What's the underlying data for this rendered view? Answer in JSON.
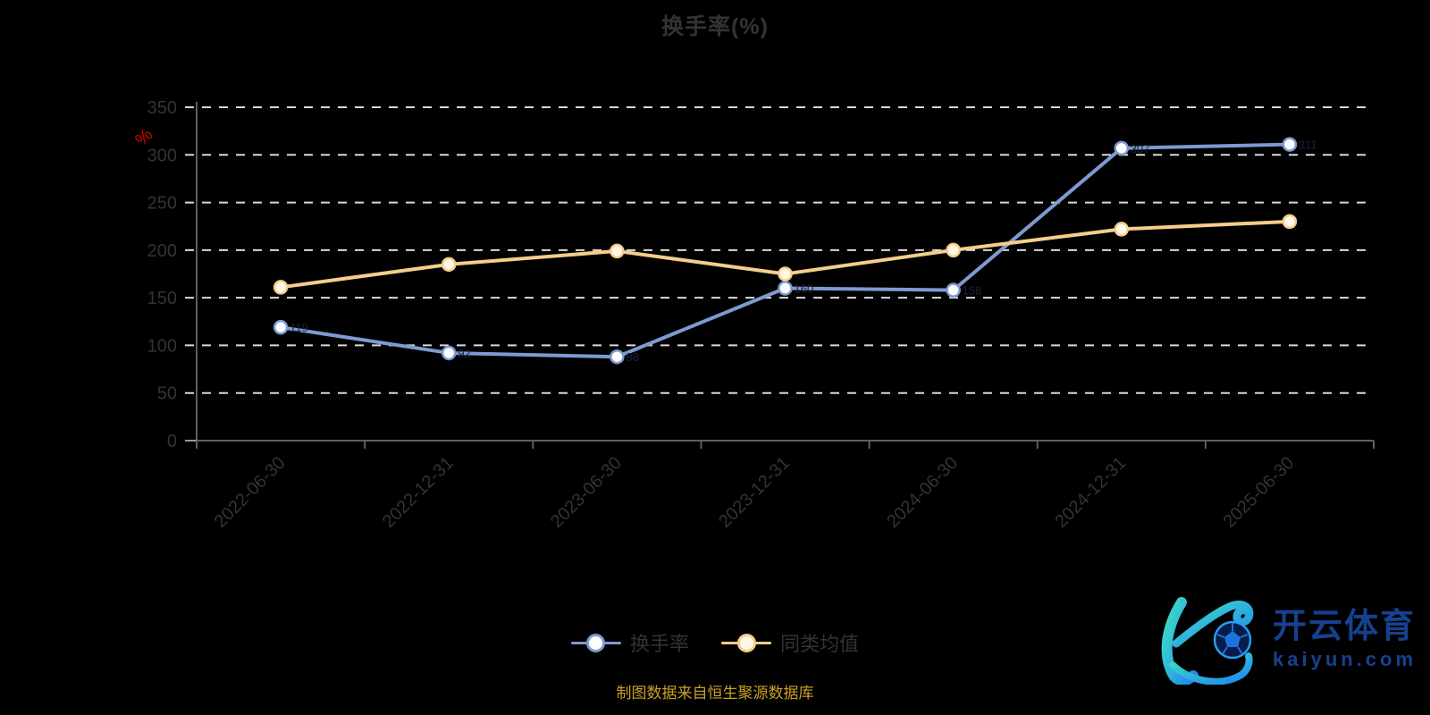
{
  "title": "换手率(%)",
  "legend": {
    "items": [
      {
        "label": "换手率"
      },
      {
        "label": "同类均值"
      }
    ]
  },
  "footer": {
    "source_note": "制图数据来自恒生聚源数据库",
    "color": "#c8a028"
  },
  "watermark": {
    "brand_cn": "开云体育",
    "brand_domain": "kaiyun.com",
    "brand_color": "#17418f",
    "logo_gradient": [
      "#3fe0c6",
      "#1e87f0"
    ]
  },
  "chart_data": {
    "type": "line",
    "title": "换手率(%)",
    "categories": [
      "2022-06-30",
      "2022-12-31",
      "2023-06-30",
      "2023-12-31",
      "2024-06-30",
      "2024-12-31",
      "2025-06-30"
    ],
    "series": [
      {
        "name": "换手率",
        "color": "#7d9bd2",
        "marker_fill": "#fdfdfd",
        "values": [
          119,
          92,
          88,
          160,
          158,
          307,
          311
        ],
        "point_labels_visible": true,
        "point_label_color": "#15233f"
      },
      {
        "name": "同类均值",
        "color": "#f6cd8b",
        "marker_fill": "#fff7e8",
        "values": [
          161,
          185,
          199,
          175,
          200,
          222,
          230
        ],
        "point_labels_visible": false
      }
    ],
    "y_unit": {
      "text": "%",
      "color": "#d60000"
    },
    "ylim": [
      0,
      350
    ],
    "y_ticks": [
      0,
      50,
      100,
      150,
      200,
      250,
      300,
      350
    ],
    "xlabel": "",
    "ylabel": "%",
    "grid": "horizontal-dashed",
    "legend_position": "bottom",
    "x_label_rotation": -45
  }
}
